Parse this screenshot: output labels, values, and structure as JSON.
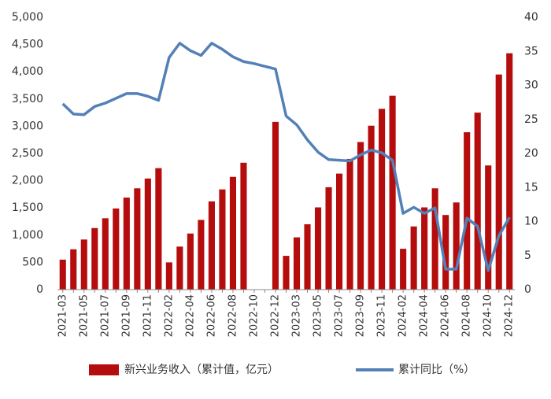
{
  "chart_data": {
    "type": "bar+line",
    "categories": [
      "2021-03",
      null,
      "2021-05",
      null,
      "2021-07",
      null,
      "2021-09",
      null,
      "2021-11",
      null,
      "2022-02",
      null,
      "2022-04",
      null,
      "2022-06",
      null,
      "2022-08",
      null,
      "2022-10",
      null,
      "2022-12",
      null,
      "2023-03",
      null,
      "2023-05",
      null,
      "2023-07",
      null,
      "2023-09",
      null,
      "2023-11",
      null,
      "2024-02",
      null,
      "2024-04",
      null,
      "2024-06",
      null,
      "2024-08",
      null,
      "2024-10",
      null,
      "2024-12"
    ],
    "series": [
      {
        "name": "新兴业务收入（累计值，亿元）",
        "color": "#b50d0d",
        "type": "bar",
        "values": [
          550,
          740,
          920,
          1130,
          1310,
          1490,
          1690,
          1860,
          2040,
          2230,
          500,
          790,
          1030,
          1280,
          1620,
          1840,
          2070,
          2330,
          null,
          null,
          3080,
          620,
          960,
          1200,
          1510,
          1880,
          2130,
          2400,
          2710,
          3010,
          3320,
          3560,
          750,
          1160,
          1510,
          1860,
          1370,
          1600,
          2890,
          3250,
          2280,
          3950,
          4340
        ]
      },
      {
        "name": "累计同比（%）",
        "color": "#5480b8",
        "type": "line",
        "axis": "y2",
        "values": [
          27.3,
          25.8,
          25.7,
          26.9,
          27.4,
          28.1,
          28.8,
          28.8,
          28.4,
          27.8,
          34.1,
          36.2,
          35.1,
          34.4,
          36.2,
          35.3,
          34.2,
          33.5,
          33.2,
          32.8,
          32.4,
          25.5,
          24.2,
          22,
          20.2,
          19.1,
          19,
          18.9,
          19.8,
          20.5,
          20.1,
          19,
          11.2,
          12.1,
          11.2,
          12,
          3,
          3,
          10.5,
          9.3,
          2.8,
          7.9,
          10.6
        ]
      }
    ],
    "ylim": [
      0,
      5000
    ],
    "yticks": [
      0,
      500,
      {
        "value": 1000,
        "label": "1,000"
      },
      {
        "value": 1500,
        "label": "1,500"
      },
      {
        "value": 2000,
        "label": "2,000"
      },
      {
        "value": 2500,
        "label": "2,500"
      },
      {
        "value": 3000,
        "label": "3,000"
      },
      {
        "value": 3500,
        "label": "3,500"
      },
      {
        "value": 4000,
        "label": "4,000"
      },
      {
        "value": 4500,
        "label": "4,500"
      },
      {
        "value": 5000,
        "label": "5,000"
      }
    ],
    "y2lim": [
      0,
      40
    ],
    "y2ticks": [
      0,
      5,
      10,
      15,
      20,
      25,
      30,
      35,
      40
    ],
    "legend": "bottom"
  }
}
